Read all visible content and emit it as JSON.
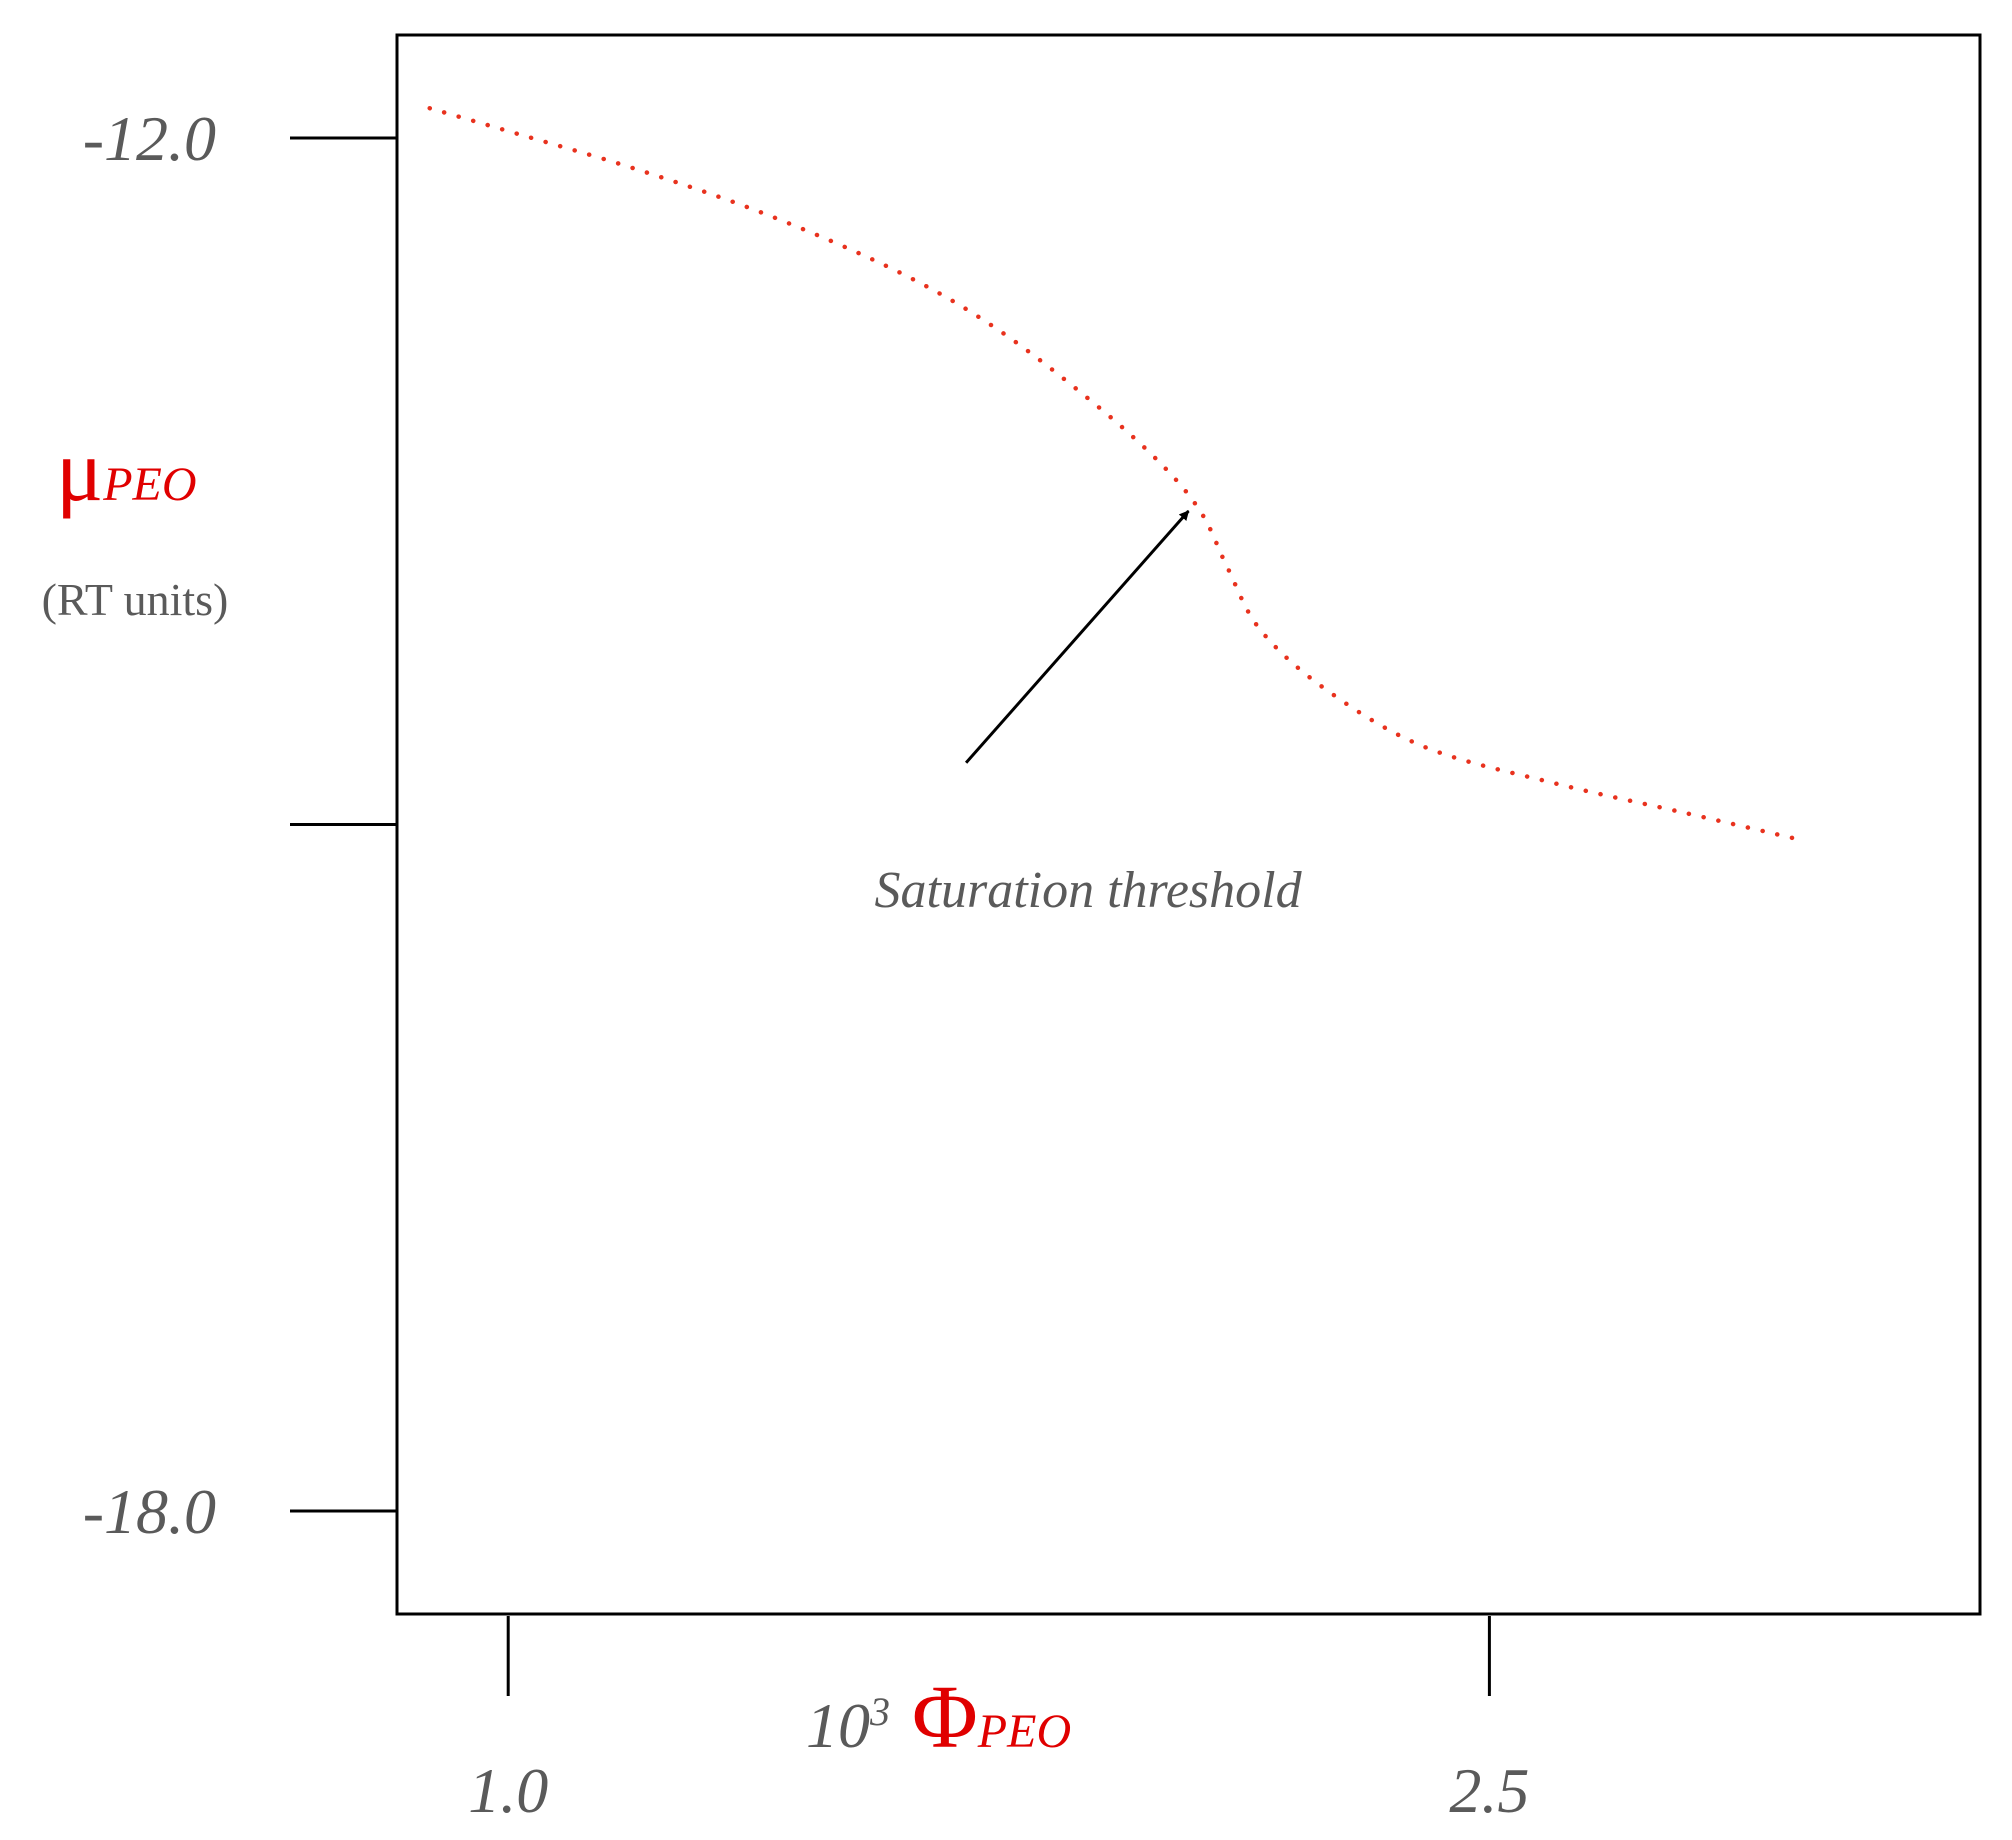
{
  "chart_data": {
    "type": "line",
    "title": "",
    "ylabel": {
      "symbol": "μ",
      "subscript": "PEO",
      "units": "(RT units)"
    },
    "xlabel": {
      "prefix": "10",
      "exponent": "3",
      "symbol": "Φ",
      "subscript": "PEO"
    },
    "xlim": [
      0.83,
      3.25
    ],
    "ylim": [
      -18.45,
      -11.55
    ],
    "x_ticks": [
      {
        "value": 1.0,
        "label": "1.0"
      },
      {
        "value": 2.5,
        "label": "2.5"
      }
    ],
    "y_ticks": [
      {
        "value": -12.0,
        "label": "-12.0"
      },
      {
        "value": -15.0,
        "label": ""
      },
      {
        "value": -18.0,
        "label": "-18.0"
      }
    ],
    "grid": false,
    "series": [
      {
        "color": "#e8321e",
        "style": "dotted",
        "points": [
          [
            0.88,
            -11.87
          ],
          [
            1.0,
            -11.97
          ],
          [
            1.2,
            -12.14
          ],
          [
            1.4,
            -12.34
          ],
          [
            1.6,
            -12.59
          ],
          [
            1.75,
            -12.84
          ],
          [
            1.9,
            -13.17
          ],
          [
            2.0,
            -13.43
          ],
          [
            2.06,
            -13.64
          ],
          [
            2.1,
            -13.88
          ],
          [
            2.15,
            -14.15
          ],
          [
            2.25,
            -14.41
          ],
          [
            2.4,
            -14.66
          ],
          [
            2.6,
            -14.82
          ],
          [
            2.8,
            -14.95
          ],
          [
            2.98,
            -15.07
          ]
        ]
      }
    ],
    "annotation": {
      "text": "Saturation threshold",
      "point_to": [
        2.04,
        -13.63
      ],
      "arrow_from": [
        1.7,
        -14.73
      ],
      "text_anchor": [
        1.56,
        -15.36
      ]
    }
  }
}
